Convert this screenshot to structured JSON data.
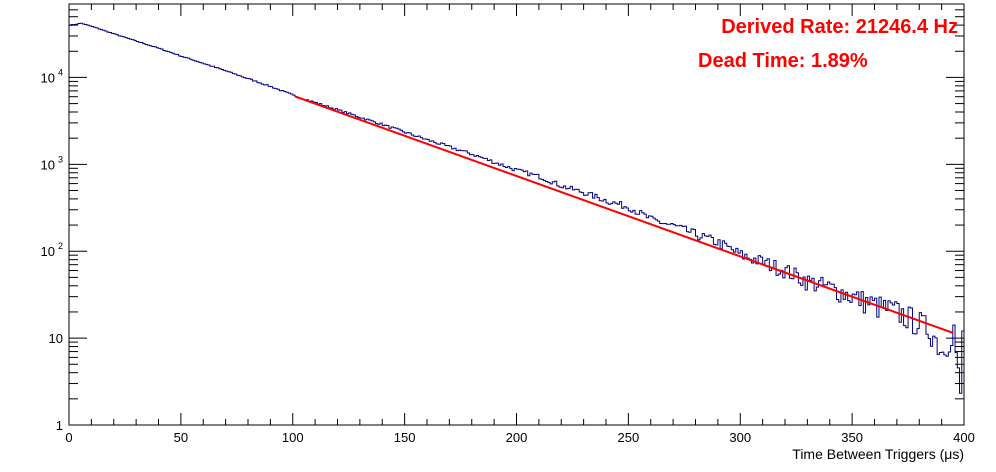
{
  "chart_data": {
    "type": "line",
    "title": "",
    "xlabel": "Time Between Triggers (μs)",
    "ylabel": "",
    "xlim": [
      0,
      400
    ],
    "ylim": [
      1,
      70000
    ],
    "y_scale": "log",
    "grid": false,
    "x_ticks": [
      "0",
      "50",
      "100",
      "150",
      "200",
      "250",
      "300",
      "350",
      "400"
    ],
    "y_ticks": [
      {
        "value": 1,
        "base": "1",
        "exp": ""
      },
      {
        "value": 10,
        "base": "10",
        "exp": ""
      },
      {
        "value": 100,
        "base": "10",
        "exp": "2"
      },
      {
        "value": 1000,
        "base": "10",
        "exp": "3"
      },
      {
        "value": 10000,
        "base": "10",
        "exp": "4"
      }
    ],
    "annotations": [
      "Derived Rate: 21246.4 Hz",
      "Dead Time: 1.89%"
    ],
    "colors": {
      "histogram": "#000080",
      "fit": "#ff0000",
      "annotation": "#ff0000"
    },
    "series": [
      {
        "kind": "histogram",
        "bin_width": 1,
        "x": [
          0,
          5,
          10,
          20,
          30,
          40,
          50,
          60,
          70,
          80,
          90,
          100,
          120,
          140,
          160,
          180,
          200,
          210,
          220,
          230,
          240,
          250,
          260,
          270,
          280,
          290,
          300,
          310,
          320,
          330,
          340,
          350,
          360,
          370,
          380,
          385,
          390,
          395,
          398,
          399
        ],
        "y": [
          40000,
          42000,
          38500,
          31500,
          26000,
          21500,
          17500,
          14400,
          11800,
          9600,
          7800,
          6200,
          4200,
          2850,
          1900,
          1300,
          850,
          720,
          560,
          470,
          380,
          320,
          230,
          195,
          155,
          125,
          90,
          75,
          60,
          45,
          38,
          30,
          24,
          20,
          15,
          12,
          7,
          13,
          2,
          12
        ]
      },
      {
        "kind": "fit",
        "x": [
          101,
          395
        ],
        "y": [
          6050,
          11.5
        ]
      }
    ]
  }
}
